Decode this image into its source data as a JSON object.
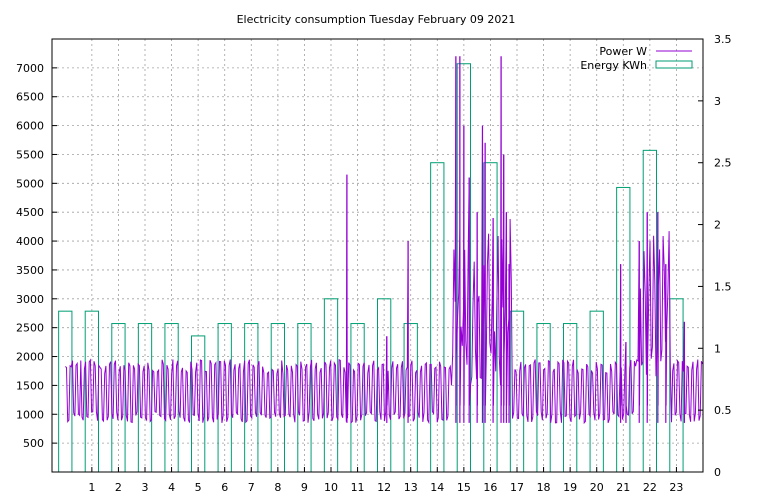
{
  "chart_data": {
    "type": "bar",
    "title": "Electricity consumption Tuesday February 09 2021",
    "xlabel": "",
    "ylabel": "",
    "x_ticks": [
      1,
      2,
      3,
      4,
      5,
      6,
      7,
      8,
      9,
      10,
      11,
      12,
      13,
      14,
      15,
      16,
      17,
      18,
      19,
      20,
      21,
      22,
      23
    ],
    "xlim": [
      -0.5,
      24
    ],
    "y_left_ticks": [
      500,
      1000,
      1500,
      2000,
      2500,
      3000,
      3500,
      4000,
      4500,
      5000,
      5500,
      6000,
      6500,
      7000
    ],
    "ylim_left": [
      0,
      7500
    ],
    "y_right_ticks": [
      "0",
      "0.5",
      "1",
      "1.5",
      "2",
      "2.5",
      "3",
      "3.5"
    ],
    "ylim_right": [
      0,
      3.5
    ],
    "grid": true,
    "legend_position": "top-right",
    "colors": {
      "power": "#9400d3",
      "energy": "#009e73"
    },
    "series": [
      {
        "name": "Power W",
        "kind": "line",
        "axis": "left",
        "baseline_low": 850,
        "baseline_high": 1950,
        "peaks": [
          {
            "x": 10.6,
            "y": 5150
          },
          {
            "x": 12.1,
            "y": 2350
          },
          {
            "x": 12.9,
            "y": 4000
          },
          {
            "x": 14.7,
            "y": 7200
          },
          {
            "x": 14.85,
            "y": 7200
          },
          {
            "x": 15.0,
            "y": 6000
          },
          {
            "x": 15.2,
            "y": 5100
          },
          {
            "x": 15.5,
            "y": 4500
          },
          {
            "x": 15.7,
            "y": 6000
          },
          {
            "x": 15.8,
            "y": 5700
          },
          {
            "x": 16.1,
            "y": 4400
          },
          {
            "x": 16.4,
            "y": 7200
          },
          {
            "x": 16.5,
            "y": 5500
          },
          {
            "x": 16.6,
            "y": 4500
          },
          {
            "x": 16.7,
            "y": 3600
          },
          {
            "x": 20.9,
            "y": 3600
          },
          {
            "x": 21.1,
            "y": 2250
          },
          {
            "x": 21.6,
            "y": 4000
          },
          {
            "x": 21.9,
            "y": 4500
          },
          {
            "x": 22.3,
            "y": 4500
          },
          {
            "x": 22.6,
            "y": 3600
          },
          {
            "x": 23.3,
            "y": 2600
          }
        ]
      },
      {
        "name": "Energy KWh",
        "kind": "step-boxes",
        "axis": "right",
        "x": [
          0,
          1,
          2,
          3,
          4,
          5,
          6,
          7,
          8,
          9,
          10,
          11,
          12,
          13,
          14,
          15,
          16,
          17,
          18,
          19,
          20,
          21,
          22,
          23
        ],
        "values": [
          1.3,
          1.3,
          1.2,
          1.2,
          1.2,
          1.1,
          1.2,
          1.2,
          1.2,
          1.2,
          1.4,
          1.2,
          1.4,
          1.2,
          2.5,
          3.3,
          2.5,
          1.3,
          1.2,
          1.2,
          1.3,
          2.3,
          2.6,
          1.4
        ]
      }
    ]
  }
}
